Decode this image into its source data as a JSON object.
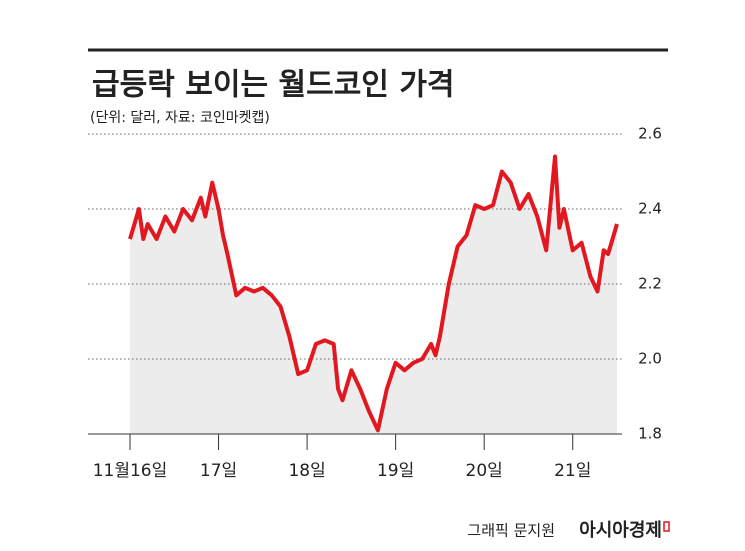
{
  "chart_data": {
    "type": "line",
    "title": "급등락 보이는 월드코인 가격",
    "subtitle": "(단위: 달러, 자료: 코인마켓캡)",
    "x": [
      16.0,
      16.1,
      16.15,
      16.2,
      16.3,
      16.4,
      16.5,
      16.6,
      16.7,
      16.8,
      16.85,
      16.93,
      17.0,
      17.05,
      17.1,
      17.2,
      17.3,
      17.4,
      17.5,
      17.6,
      17.7,
      17.8,
      17.9,
      18.0,
      18.1,
      18.2,
      18.3,
      18.35,
      18.4,
      18.5,
      18.6,
      18.7,
      18.8,
      18.9,
      19.0,
      19.1,
      19.2,
      19.3,
      19.4,
      19.45,
      19.5,
      19.6,
      19.7,
      19.8,
      19.9,
      20.0,
      20.1,
      20.2,
      20.3,
      20.4,
      20.5,
      20.6,
      20.7,
      20.8,
      20.85,
      20.9,
      21.0,
      21.1,
      21.2,
      21.28,
      21.35,
      21.4,
      21.5
    ],
    "values": [
      2.32,
      2.4,
      2.32,
      2.36,
      2.32,
      2.38,
      2.34,
      2.4,
      2.37,
      2.43,
      2.38,
      2.47,
      2.4,
      2.33,
      2.28,
      2.17,
      2.19,
      2.18,
      2.19,
      2.17,
      2.14,
      2.06,
      1.96,
      1.97,
      2.04,
      2.05,
      2.04,
      1.92,
      1.89,
      1.97,
      1.92,
      1.86,
      1.81,
      1.92,
      1.99,
      1.97,
      1.99,
      2.0,
      2.04,
      2.01,
      2.06,
      2.2,
      2.3,
      2.33,
      2.41,
      2.4,
      2.41,
      2.5,
      2.47,
      2.4,
      2.44,
      2.38,
      2.29,
      2.54,
      2.35,
      2.4,
      2.29,
      2.31,
      2.22,
      2.18,
      2.29,
      2.28,
      2.36
    ],
    "color": "#e3171f",
    "area_color": "#ececec",
    "xlim": [
      16,
      21.5
    ],
    "xticks": [
      {
        "value": 16,
        "label": "11월16일"
      },
      {
        "value": 17,
        "label": "17일"
      },
      {
        "value": 18,
        "label": "18일"
      },
      {
        "value": 19,
        "label": "19일"
      },
      {
        "value": 20,
        "label": "20일"
      },
      {
        "value": 21,
        "label": "21일"
      }
    ],
    "ylim": [
      1.8,
      2.6
    ],
    "yticks": [
      1.8,
      {
        "value": 2,
        "label": "2.0"
      },
      2.2,
      2.4,
      2.6
    ],
    "grid": true
  },
  "footer": {
    "credit": "그래픽 문지원",
    "brand": "아시아경제"
  }
}
